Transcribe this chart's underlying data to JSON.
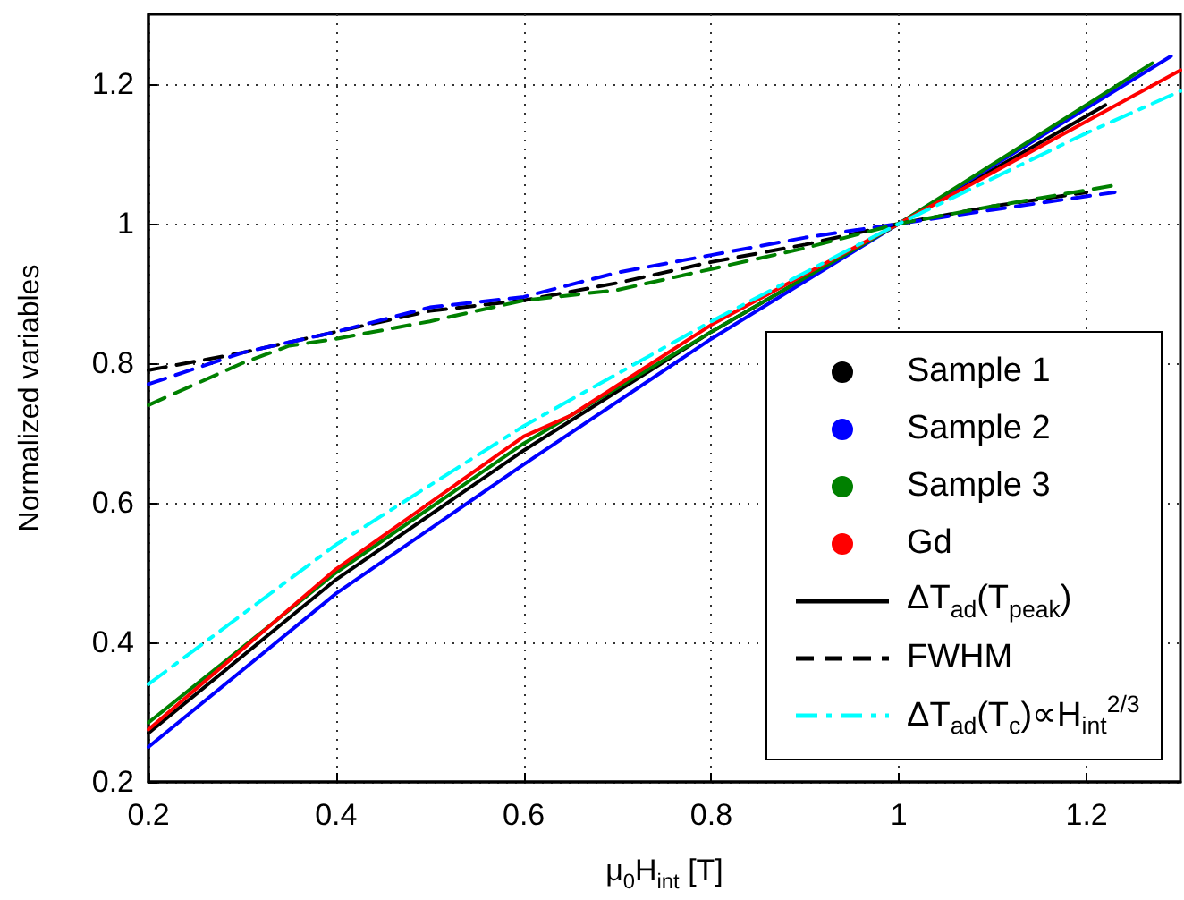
{
  "chart_data": {
    "type": "line",
    "xlabel": "μ$_{0}$H$_{int}$ [T]",
    "ylabel": "Normalized variables",
    "xlim": [
      0.2,
      1.3
    ],
    "ylim": [
      0.2,
      1.3
    ],
    "xticks": [
      0.2,
      0.4,
      0.6,
      0.8,
      1,
      1.2
    ],
    "yticks": [
      0.2,
      0.4,
      0.6,
      0.8,
      1,
      1.2
    ],
    "grid": true,
    "legend": "bottom right",
    "marker": "none",
    "annotations": [
      "ΔT$_{ad}$(T$_{peak}$)",
      "FWHM"
    ],
    "series": [
      {
        "name": "Sample 1",
        "color": "#000000",
        "line_style": "solid",
        "x": [
          0.2,
          0.4,
          0.6,
          0.8,
          1,
          1.22
        ],
        "values": [
          0.27,
          0.49,
          0.675,
          0.845,
          1,
          1.17
        ]
      },
      {
        "name": "Sample 2",
        "color": "#0000ff",
        "line_style": "solid",
        "x": [
          0.2,
          0.4,
          0.6,
          0.8,
          1,
          1.29
        ],
        "values": [
          0.25,
          0.47,
          0.655,
          0.835,
          1,
          1.24
        ]
      },
      {
        "name": "Sample 3",
        "color": "#008000",
        "line_style": "solid",
        "x": [
          0.2,
          0.4,
          0.6,
          0.8,
          1,
          1.27
        ],
        "values": [
          0.285,
          0.5,
          0.685,
          0.845,
          1,
          1.23
        ]
      },
      {
        "name": "Gd",
        "color": "#ff0000",
        "line_style": "solid",
        "x": [
          0.2,
          0.4,
          0.6,
          0.65,
          0.8,
          1,
          1.3
        ],
        "values": [
          0.275,
          0.505,
          0.695,
          0.725,
          0.855,
          1,
          1.22
        ]
      },
      {
        "color": "#000000",
        "line_style": "dashed",
        "x": [
          0.2,
          0.3,
          0.4,
          0.5,
          0.6,
          0.7,
          0.8,
          0.9,
          1,
          1.1,
          1.2
        ],
        "values": [
          0.79,
          0.815,
          0.845,
          0.875,
          0.89,
          0.915,
          0.945,
          0.97,
          1,
          1.025,
          1.045
        ]
      },
      {
        "color": "#0000ff",
        "line_style": "dashed",
        "x": [
          0.2,
          0.3,
          0.4,
          0.5,
          0.6,
          0.7,
          0.8,
          0.9,
          1,
          1.1,
          1.23
        ],
        "values": [
          0.77,
          0.815,
          0.845,
          0.88,
          0.895,
          0.93,
          0.955,
          0.98,
          1,
          1.02,
          1.045
        ]
      },
      {
        "color": "#008000",
        "line_style": "dashed",
        "x": [
          0.2,
          0.3,
          0.35,
          0.4,
          0.5,
          0.6,
          0.7,
          0.8,
          0.9,
          1,
          1.1,
          1.23
        ],
        "values": [
          0.74,
          0.8,
          0.825,
          0.835,
          0.86,
          0.89,
          0.905,
          0.935,
          0.965,
          1,
          1.025,
          1.055
        ]
      },
      {
        "name": "ΔT$_{ad}$(T$_{c}$)∝H$_{int}$$^{2/3}$",
        "color": "#00ffff",
        "line_style": "dashdot",
        "x": [
          0.2,
          0.4,
          0.6,
          0.8,
          1,
          1.2,
          1.3
        ],
        "values": [
          0.34,
          0.54,
          0.71,
          0.86,
          1,
          1.13,
          1.19
        ]
      }
    ]
  }
}
